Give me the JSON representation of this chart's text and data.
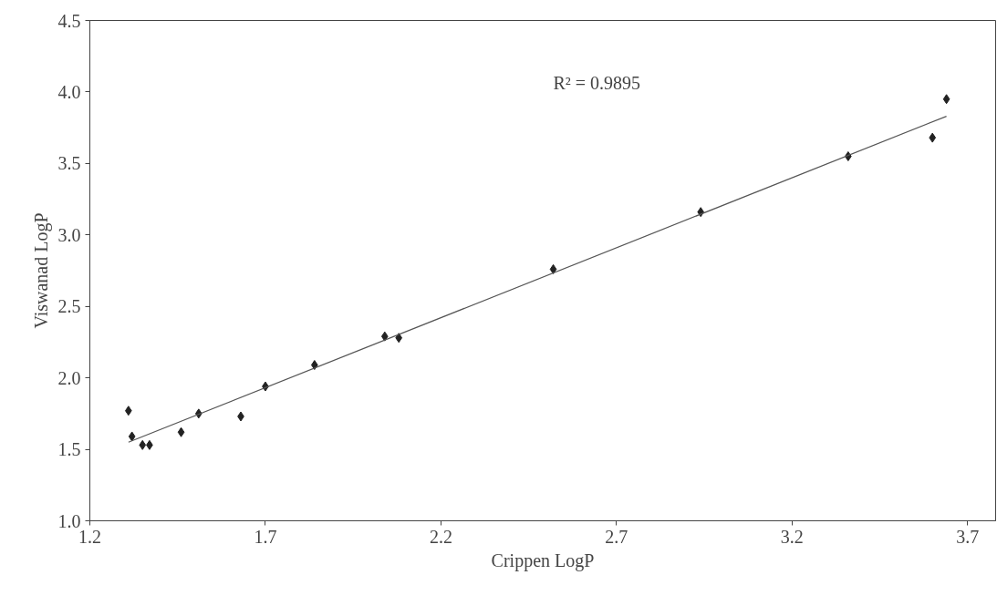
{
  "chart_data": {
    "type": "scatter",
    "xlabel": "Crippen LogP",
    "ylabel": "Viswanad LogP",
    "annotations": [
      "R² = 0.9895"
    ],
    "series": [
      {
        "color": "#222222",
        "marker": "diamond",
        "x": [
          1.31,
          1.32,
          1.35,
          1.37,
          1.46,
          1.51,
          1.63,
          1.7,
          1.84,
          2.04,
          2.08,
          2.52,
          2.94,
          3.36,
          3.6,
          3.64
        ],
        "values": [
          1.77,
          1.59,
          1.53,
          1.53,
          1.62,
          1.75,
          1.73,
          1.94,
          2.09,
          2.29,
          2.28,
          2.76,
          3.16,
          3.55,
          3.68,
          3.95
        ]
      },
      {
        "type": "line",
        "color": "#555555",
        "marker": "none",
        "x": [
          1.31,
          3.64
        ],
        "values": [
          1.55,
          3.83
        ]
      }
    ],
    "xlim": [
      1.2,
      3.78
    ],
    "ylim": [
      1.0,
      4.5
    ],
    "xticks": [
      1.2,
      1.7,
      2.2,
      2.7,
      3.2,
      3.7
    ],
    "yticks": [
      {
        "value": 1.0,
        "label": "1.0"
      },
      {
        "value": 1.5,
        "label": "1.5"
      },
      {
        "value": 2.0,
        "label": "2.0"
      },
      {
        "value": 2.5,
        "label": "2.5"
      },
      {
        "value": 3.0,
        "label": "3.0"
      },
      {
        "value": 3.5,
        "label": "3.5"
      },
      {
        "value": 4.0,
        "label": "4.0"
      },
      {
        "value": 4.5,
        "label": "4.5"
      }
    ],
    "grid": false
  }
}
